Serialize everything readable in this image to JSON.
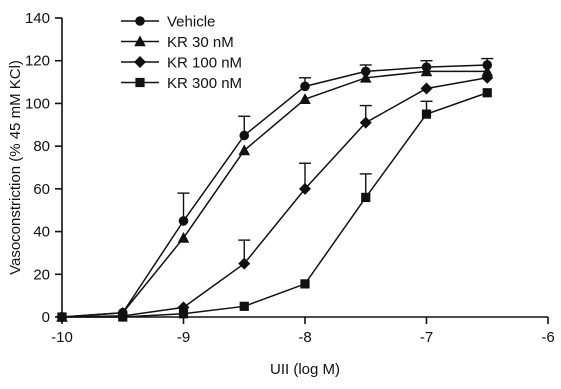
{
  "chart_data": {
    "type": "line",
    "xlabel": "UII (log M)",
    "ylabel": "Vasoconstriction (% 45 mM KCl)",
    "xlim": [
      -10,
      -6
    ],
    "ylim": [
      0,
      140
    ],
    "x_ticks": [
      -10,
      -9,
      -8,
      -7,
      -6
    ],
    "y_ticks": [
      0,
      20,
      40,
      60,
      80,
      100,
      120,
      140
    ],
    "x_tick_labels": [
      "-10",
      "-9",
      "-8",
      "-7",
      "-6"
    ],
    "y_tick_labels": [
      "0",
      "20",
      "40",
      "60",
      "80",
      "100",
      "120",
      "140"
    ],
    "grid": false,
    "legend_position": "top-left",
    "x": [
      -10,
      -9.5,
      -9,
      -8.5,
      -8,
      -7.5,
      -7,
      -6.5
    ],
    "series": [
      {
        "name": "Vehicle",
        "marker": "circle",
        "color": "#111111",
        "values": [
          0,
          2,
          45,
          85,
          108,
          115,
          117,
          118
        ],
        "error_plus": [
          0,
          0,
          13,
          9,
          4,
          3,
          3,
          3
        ]
      },
      {
        "name": "KR 30 nM",
        "marker": "triangle",
        "color": "#111111",
        "values": [
          0,
          2,
          37,
          78,
          102,
          112,
          115,
          115
        ],
        "error_plus": [
          0,
          0,
          0,
          0,
          0,
          0,
          0,
          0
        ]
      },
      {
        "name": "KR 100 nM",
        "marker": "diamond",
        "color": "#111111",
        "values": [
          0,
          0.5,
          4.5,
          25,
          60,
          91,
          107,
          112
        ],
        "error_plus": [
          0,
          0,
          0,
          11,
          12,
          8,
          0,
          0
        ]
      },
      {
        "name": "KR 300 nM",
        "marker": "square",
        "color": "#111111",
        "values": [
          0,
          0,
          1.5,
          5,
          15.5,
          56,
          95,
          105
        ],
        "error_plus": [
          0,
          0,
          0,
          0,
          0,
          11,
          6,
          0
        ]
      }
    ]
  }
}
